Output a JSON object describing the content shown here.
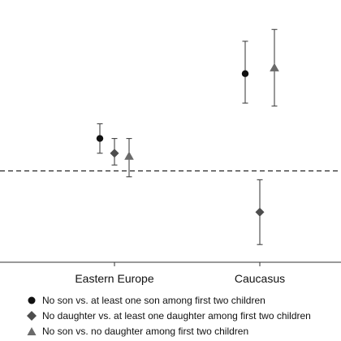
{
  "chart_data": {
    "type": "scatter",
    "subtype": "point-estimate-with-confidence-intervals",
    "categories": [
      "Eastern Europe",
      "Caucasus"
    ],
    "reference_line": {
      "y": 0,
      "style": "dashed"
    },
    "ylim": [
      -0.31,
      0.58
    ],
    "grid": false,
    "axes": {
      "left": true,
      "bottom": true,
      "top": false,
      "right": false
    },
    "legend_position": "bottom",
    "series": [
      {
        "name": "No son vs. at least one son among first two children",
        "marker": "circle",
        "color": "#111111",
        "points": [
          {
            "category": "Eastern Europe",
            "estimate": 0.11,
            "ci": [
              0.06,
              0.16
            ]
          },
          {
            "category": "Caucasus",
            "estimate": 0.33,
            "ci": [
              0.23,
              0.44
            ]
          }
        ]
      },
      {
        "name": "No daughter vs. at least one daughter among first two children",
        "marker": "diamond",
        "color": "#4d4d4d",
        "points": [
          {
            "category": "Eastern Europe",
            "estimate": 0.06,
            "ci": [
              0.02,
              0.11
            ]
          },
          {
            "category": "Caucasus",
            "estimate": -0.14,
            "ci": [
              -0.03,
              -0.25
            ]
          }
        ]
      },
      {
        "name": "No son vs. no daughter among first two children",
        "marker": "triangle",
        "color": "#6a6a6a",
        "points": [
          {
            "category": "Eastern Europe",
            "estimate": 0.05,
            "ci": [
              -0.02,
              0.11
            ]
          },
          {
            "category": "Caucasus",
            "estimate": 0.35,
            "ci": [
              0.22,
              0.48
            ]
          }
        ]
      }
    ]
  }
}
